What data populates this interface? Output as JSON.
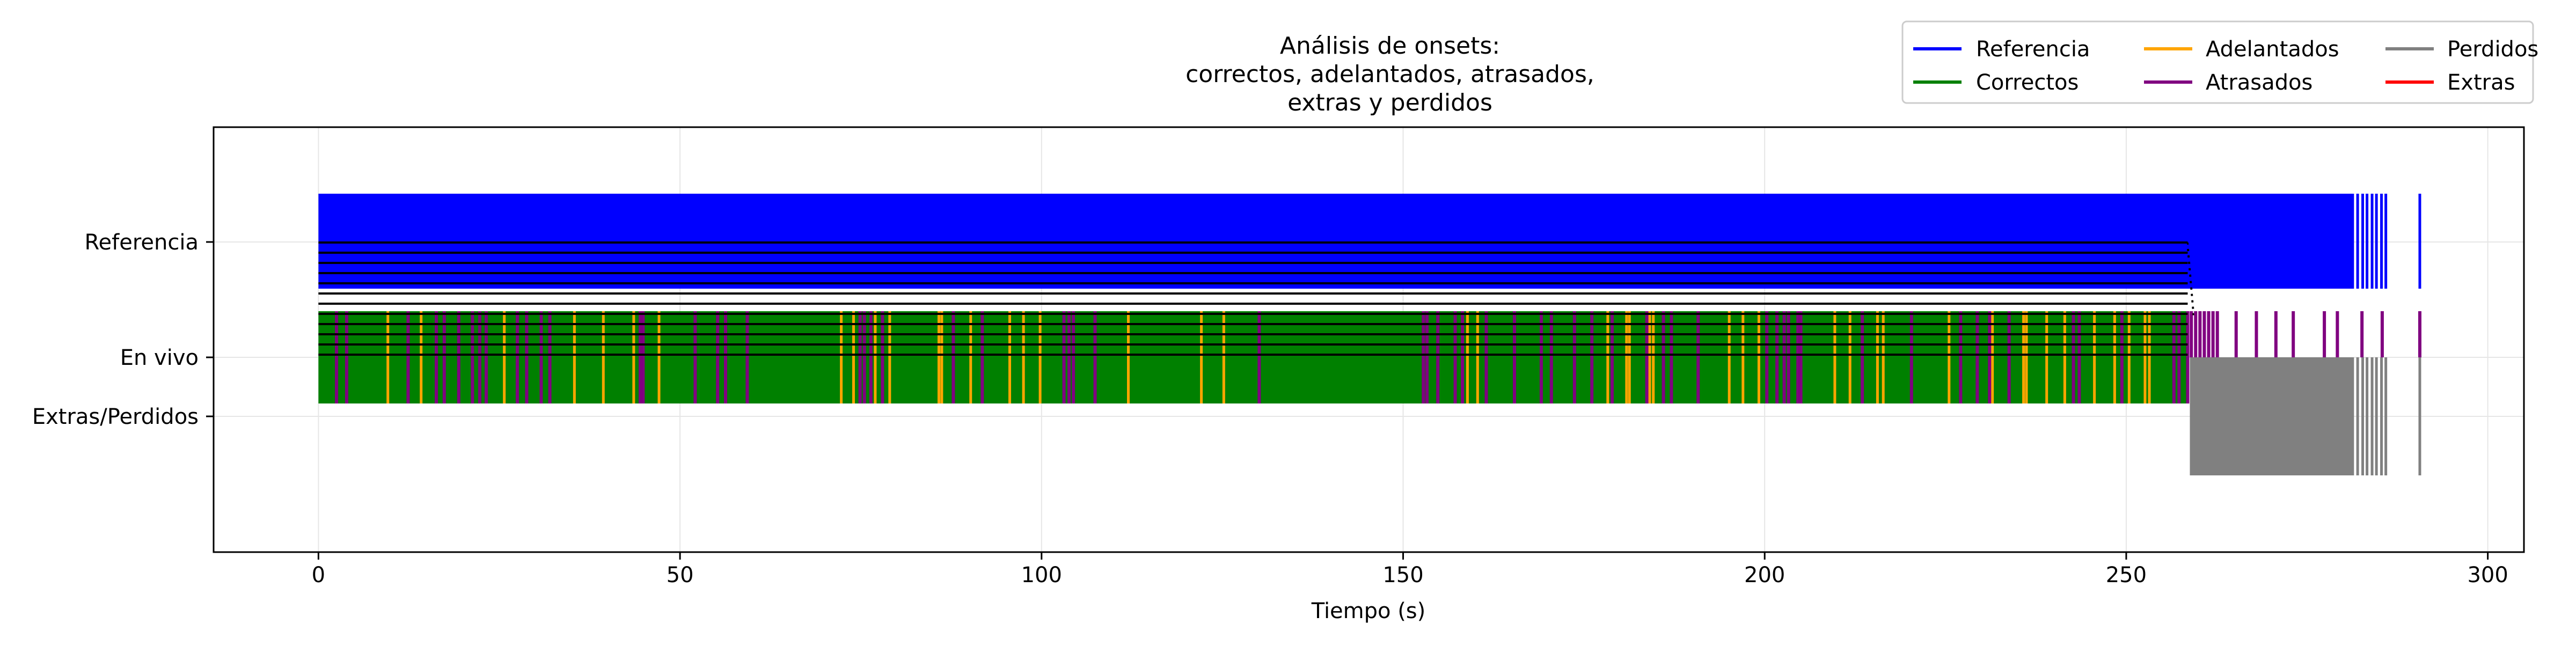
{
  "chart_data": {
    "type": "event-timeline",
    "title_lines": [
      "Análisis de onsets:",
      "correctos, adelantados, atrasados,",
      "extras y perdidos"
    ],
    "xlabel": "Tiempo (s)",
    "xlim": [
      -14.5,
      305
    ],
    "xticks": [
      0,
      50,
      100,
      150,
      200,
      250,
      300
    ],
    "grid": true,
    "legend_position": "top-right",
    "rows": [
      {
        "label": "Referencia",
        "y": 1.0
      },
      {
        "label": "En vivo",
        "y": 0.0
      },
      {
        "label": "Extras/Perdidos",
        "y": -0.5
      }
    ],
    "colors": {
      "referencia": "#0000ff",
      "correctos": "#008000",
      "adelantados": "#ffa500",
      "atrasados": "#800080",
      "perdidos": "#808080",
      "extras": "#ff0000",
      "connector": "#000000"
    },
    "legend": [
      {
        "key": "referencia",
        "label": "Referencia"
      },
      {
        "key": "correctos",
        "label": "Correctos"
      },
      {
        "key": "adelantados",
        "label": "Adelantados"
      },
      {
        "key": "atrasados",
        "label": "Atrasados"
      },
      {
        "key": "perdidos",
        "label": "Perdidos"
      },
      {
        "key": "extras",
        "label": "Extras"
      }
    ],
    "series": {
      "referencia_dense_range": [
        0,
        281.5
      ],
      "referencia_onsets": [
        282.0,
        282.7,
        283.3,
        284.0,
        284.6,
        285.3,
        285.9,
        290.6
      ],
      "correctos_dense_range": [
        0,
        258.5
      ],
      "adelantados_onsets": [
        9.6,
        14.2,
        25.7,
        35.4,
        39.4,
        43.6,
        47.1,
        72.3,
        74.0,
        77.0,
        79.0,
        85.8,
        86.2,
        90.2,
        95.6,
        97.5,
        99.8,
        112.0,
        122.1,
        125.2,
        158.9,
        160.3,
        178.3,
        180.9,
        181.3,
        184.1,
        184.6,
        195.1,
        197.0,
        199.2,
        209.7,
        211.8,
        215.6,
        216.4,
        225.5,
        231.5,
        235.8,
        236.2,
        239.0,
        241.5,
        245.6,
        248.4,
        250.4,
        252.6,
        253.2
      ],
      "atrasados_onsets": [
        2.5,
        3.9,
        12.4,
        16.3,
        17.4,
        19.4,
        21.3,
        22.3,
        23.2,
        27.5,
        28.8,
        30.8,
        32.0,
        44.5,
        44.9,
        52.1,
        55.2,
        56.3,
        59.3,
        74.9,
        75.5,
        76.4,
        78.0,
        87.8,
        91.8,
        103.1,
        103.8,
        104.4,
        107.4,
        130.1,
        152.8,
        153.3,
        154.8,
        157.2,
        158.2,
        161.5,
        165.4,
        169.1,
        170.5,
        173.7,
        176.1,
        178.9,
        183.7,
        186.0,
        187.1,
        190.8,
        200.3,
        201.7,
        202.7,
        203.3,
        204.6,
        205.0,
        213.5,
        220.3,
        227.1,
        229.4,
        231.1,
        233.8,
        242.7,
        243.5,
        249.4,
        256.6,
        257.3,
        258.5,
        259.0,
        259.6,
        260.2,
        260.8,
        261.4,
        262.0,
        262.6,
        265.2,
        268.0,
        270.7,
        273.1,
        277.4,
        279.2,
        282.6,
        285.4,
        290.6
      ],
      "perdidos_dense_range": [
        258.8,
        281.5
      ],
      "perdidos_onsets": [
        282.0,
        282.7,
        283.3,
        284.0,
        284.6,
        285.3,
        285.9,
        290.6
      ],
      "connectors": {
        "ref_end": 258.5,
        "live_end": 259.3,
        "count": 12,
        "dotted_count": 2
      }
    }
  }
}
